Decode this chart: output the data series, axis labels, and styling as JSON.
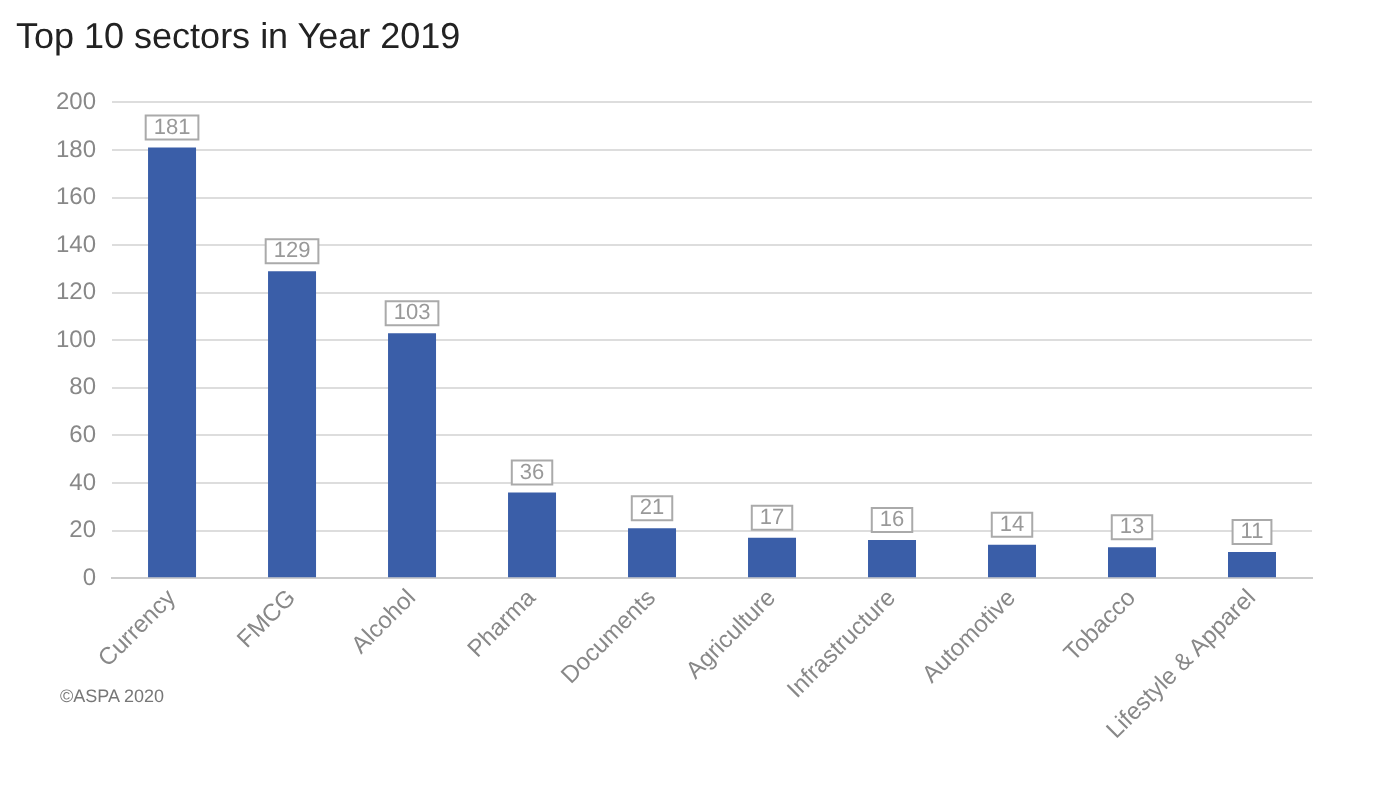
{
  "chart_data": {
    "type": "bar",
    "title": "Top 10 sectors in Year 2019",
    "categories": [
      "Currency",
      "FMCG",
      "Alcohol",
      "Pharma",
      "Documents",
      "Agriculture",
      "Infrastructure",
      "Automotive",
      "Tobacco",
      "Lifestyle & Apparel"
    ],
    "values": [
      181,
      129,
      103,
      36,
      21,
      17,
      16,
      14,
      13,
      11
    ],
    "color": "#3a5ea8",
    "ylim": [
      0,
      200
    ],
    "yticks": [
      0,
      20,
      40,
      60,
      80,
      100,
      120,
      140,
      160,
      180,
      200
    ],
    "grid": "y",
    "legend": false,
    "data_labels": true,
    "annotations": [
      "©ASPA 2020"
    ]
  }
}
